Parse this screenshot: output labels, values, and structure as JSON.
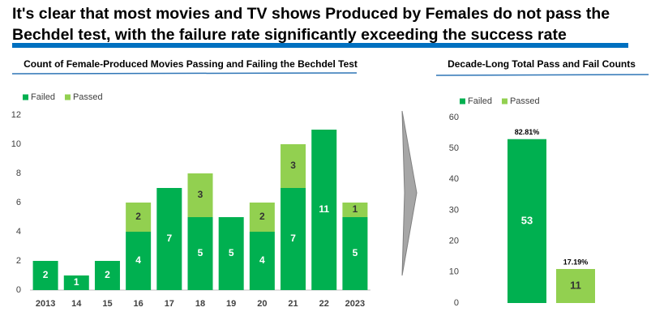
{
  "header": {
    "title": "It's clear that most movies and TV shows Produced by Females do not pass the Bechdel test, with the failure rate significantly exceeding the success rate"
  },
  "chart_data": [
    {
      "type": "bar",
      "stacked": true,
      "title": "Count of Female-Produced Movies Passing and Failing the Bechdel Test",
      "categories": [
        "2013",
        "14",
        "15",
        "16",
        "17",
        "18",
        "19",
        "20",
        "21",
        "22",
        "2023"
      ],
      "series": [
        {
          "name": "Failed",
          "color": "#00b050",
          "values": [
            2,
            1,
            2,
            4,
            7,
            5,
            5,
            4,
            7,
            11,
            5
          ]
        },
        {
          "name": "Passed",
          "color": "#92d050",
          "values": [
            null,
            null,
            null,
            2,
            null,
            3,
            null,
            2,
            3,
            null,
            1
          ]
        }
      ],
      "ylim": [
        0,
        12
      ],
      "yticks": [
        0,
        2,
        4,
        6,
        8,
        10,
        12
      ]
    },
    {
      "type": "bar",
      "stacked": true,
      "title": "Decade-Long Total Pass and Fail Counts",
      "categories": [
        null,
        null
      ],
      "series": [
        {
          "name": "Failed",
          "color": "#00b050",
          "values": [
            53,
            null
          ],
          "percent_labels": [
            "82.81%",
            null
          ]
        },
        {
          "name": "Passed",
          "color": "#92d050",
          "values": [
            null,
            11
          ],
          "percent_labels": [
            null,
            "17.19%"
          ]
        }
      ],
      "ylim": [
        0,
        60
      ],
      "yticks": [
        0,
        10,
        20,
        30,
        40,
        50,
        60
      ]
    }
  ]
}
